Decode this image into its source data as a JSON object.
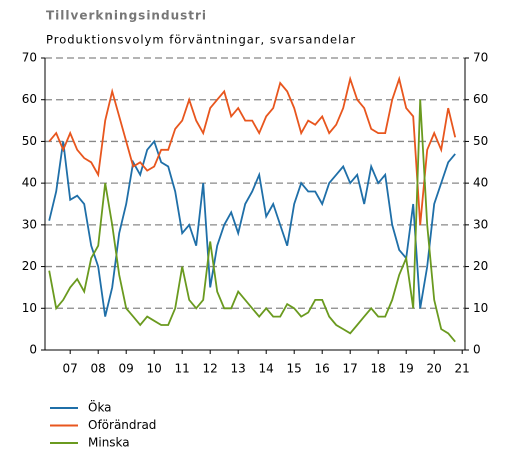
{
  "chart_data": {
    "type": "line",
    "title": "Tillverkningsindustri",
    "subtitle": "Produktionsvolym förväntningar, svarsandelar",
    "x": [
      2006.75,
      2007,
      2007.25,
      2007.5,
      2007.75,
      2008,
      2008.25,
      2008.5,
      2008.75,
      2009,
      2009.25,
      2009.5,
      2009.75,
      2010,
      2010.25,
      2010.5,
      2010.75,
      2011,
      2011.25,
      2011.5,
      2011.75,
      2012,
      2012.25,
      2012.5,
      2012.75,
      2013,
      2013.25,
      2013.5,
      2013.75,
      2014,
      2014.25,
      2014.5,
      2014.75,
      2015,
      2015.25,
      2015.5,
      2015.75,
      2016,
      2016.25,
      2016.5,
      2016.75,
      2017,
      2017.25,
      2017.5,
      2017.75,
      2018,
      2018.25,
      2018.5,
      2018.75,
      2019,
      2019.25,
      2019.5,
      2019.75,
      2020,
      2020.25,
      2020.5,
      2020.75,
      2021,
      2021.25
    ],
    "series": [
      {
        "name": "Öka",
        "color": "#1f6fa8",
        "values": [
          31,
          38,
          50,
          36,
          37,
          35,
          25,
          20,
          8,
          15,
          28,
          35,
          45,
          42,
          48,
          50,
          45,
          44,
          38,
          28,
          30,
          25,
          40,
          15,
          25,
          30,
          33,
          28,
          35,
          38,
          42,
          32,
          35,
          30,
          25,
          35,
          40,
          38,
          38,
          35,
          40,
          42,
          44,
          40,
          42,
          35,
          44,
          40,
          42,
          30,
          24,
          22,
          35,
          10,
          20,
          35,
          40,
          45,
          47
        ]
      },
      {
        "name": "Oförändrad",
        "color": "#e8561e",
        "values": [
          50,
          52,
          48,
          52,
          48,
          46,
          45,
          42,
          55,
          62,
          56,
          50,
          44,
          45,
          43,
          44,
          48,
          48,
          53,
          55,
          60,
          55,
          52,
          58,
          60,
          62,
          56,
          58,
          55,
          55,
          52,
          56,
          58,
          64,
          62,
          58,
          52,
          55,
          54,
          56,
          52,
          54,
          58,
          65,
          60,
          58,
          53,
          52,
          52,
          60,
          65,
          58,
          56,
          30,
          48,
          52,
          48,
          58,
          51
        ]
      },
      {
        "name": "Minska",
        "color": "#6a9a1f",
        "values": [
          19,
          10,
          12,
          15,
          17,
          14,
          22,
          25,
          40,
          30,
          18,
          10,
          8,
          6,
          8,
          7,
          6,
          6,
          10,
          20,
          12,
          10,
          12,
          26,
          14,
          10,
          10,
          14,
          12,
          10,
          8,
          10,
          8,
          8,
          11,
          10,
          8,
          9,
          12,
          12,
          8,
          6,
          5,
          4,
          6,
          8,
          10,
          8,
          8,
          12,
          18,
          22,
          10,
          60,
          30,
          12,
          5,
          4,
          2
        ]
      }
    ],
    "xlim": [
      2006.6,
      2021.6
    ],
    "xticks": [
      {
        "value": 2007.5,
        "label": "07"
      },
      {
        "value": 2008.5,
        "label": "08"
      },
      {
        "value": 2009.5,
        "label": "09"
      },
      {
        "value": 2010.5,
        "label": "10"
      },
      {
        "value": 2011.5,
        "label": "11"
      },
      {
        "value": 2012.5,
        "label": "12"
      },
      {
        "value": 2013.5,
        "label": "13"
      },
      {
        "value": 2014.5,
        "label": "14"
      },
      {
        "value": 2015.5,
        "label": "15"
      },
      {
        "value": 2016.5,
        "label": "16"
      },
      {
        "value": 2017.5,
        "label": "17"
      },
      {
        "value": 2018.5,
        "label": "18"
      },
      {
        "value": 2019.5,
        "label": "19"
      },
      {
        "value": 2020.5,
        "label": "20"
      },
      {
        "value": 2021.5,
        "label": "21"
      }
    ],
    "ylim": [
      0,
      70
    ],
    "yticks": [
      0,
      10,
      20,
      30,
      40,
      50,
      60,
      70
    ],
    "grid": true
  }
}
